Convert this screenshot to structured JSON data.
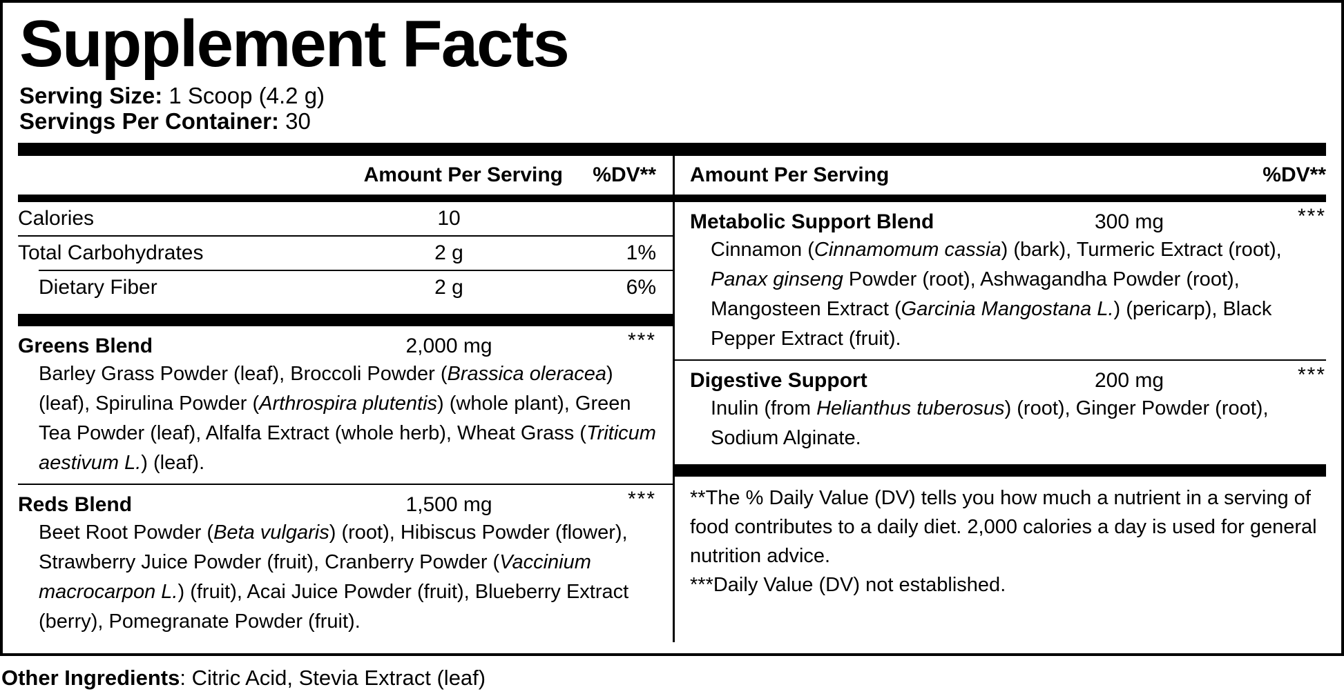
{
  "title": "Supplement Facts",
  "serving_info": {
    "serving_size_label": "Serving Size:",
    "serving_size_value": " 1 Scoop (4.2 g)",
    "servings_per_container_label": "Servings Per Container:",
    "servings_per_container_value": " 30"
  },
  "table": {
    "left_column": {
      "header": {
        "amount": "Amount Per Serving",
        "dv": "%DV**"
      },
      "nutrients": [
        {
          "name": "Calories",
          "amount": "10",
          "dv": ""
        },
        {
          "name": "Total Carbohydrates",
          "amount": "2 g",
          "dv": "1%"
        },
        {
          "name": "Dietary Fiber",
          "amount": "2 g",
          "dv": "6%"
        }
      ],
      "blends": [
        {
          "name": "Greens Blend",
          "amount": "2,000 mg",
          "dv": "***",
          "ingredients": [
            {
              "text": "Barley Grass Powder (leaf), Broccoli Powder (",
              "italic": false
            },
            {
              "text": "Brassica oleracea",
              "italic": true
            },
            {
              "text": ") (leaf), Spirulina Powder (",
              "italic": false
            },
            {
              "text": "Arthrospira plutentis",
              "italic": true
            },
            {
              "text": ") (whole plant), Green Tea Powder (leaf), Alfalfa Extract (whole herb), Wheat Grass (",
              "italic": false
            },
            {
              "text": "Triticum aestivum L.",
              "italic": true
            },
            {
              "text": ") (leaf).",
              "italic": false
            }
          ]
        },
        {
          "name": "Reds Blend",
          "amount": "1,500 mg",
          "dv": "***",
          "ingredients": [
            {
              "text": "Beet Root Powder (",
              "italic": false
            },
            {
              "text": "Beta vulgaris",
              "italic": true
            },
            {
              "text": ") (root), Hibiscus Powder (flower), Strawberry Juice Powder (fruit), Cranberry Powder (",
              "italic": false
            },
            {
              "text": "Vaccinium macrocarpon L.",
              "italic": true
            },
            {
              "text": ") (fruit), Acai Juice Powder (fruit), Blueberry Extract (berry), Pomegranate Powder (fruit).",
              "italic": false
            }
          ]
        }
      ]
    },
    "right_column": {
      "header": {
        "amount": "Amount Per Serving",
        "dv": "%DV**"
      },
      "blends": [
        {
          "name": "Metabolic Support Blend",
          "amount": "300 mg",
          "dv": "***",
          "ingredients": [
            {
              "text": "Cinnamon (",
              "italic": false
            },
            {
              "text": "Cinnamomum cassia",
              "italic": true
            },
            {
              "text": ") (bark), Turmeric Extract (root), ",
              "italic": false
            },
            {
              "text": "Panax ginseng",
              "italic": true
            },
            {
              "text": " Powder (root), Ashwagandha Powder (root), Mangosteen Extract (",
              "italic": false
            },
            {
              "text": "Garcinia Mangostana L.",
              "italic": true
            },
            {
              "text": ") (pericarp), Black Pepper Extract (fruit).",
              "italic": false
            }
          ]
        },
        {
          "name": "Digestive Support",
          "amount": "200 mg",
          "dv": "***",
          "ingredients": [
            {
              "text": "Inulin (from ",
              "italic": false
            },
            {
              "text": "Helianthus tuberosus",
              "italic": true
            },
            {
              "text": ") (root), Ginger Powder (root), Sodium Alginate.",
              "italic": false
            }
          ]
        }
      ],
      "footnotes": [
        "**The % Daily Value (DV) tells you how much a nutrient in a serving of food contributes to a daily diet. 2,000 calories a day is used for general nutrition advice.",
        "***Daily Value (DV) not established."
      ]
    }
  },
  "other_ingredients": {
    "label": "Other Ingredients",
    "value": ": Citric Acid, Stevia Extract (leaf)"
  },
  "colors": {
    "text": "#000000",
    "background": "#ffffff"
  }
}
